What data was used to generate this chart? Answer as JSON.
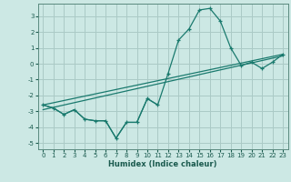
{
  "xlabel": "Humidex (Indice chaleur)",
  "bg_color": "#cce8e4",
  "grid_color": "#aacac6",
  "line_color": "#1a7a6e",
  "xlim": [
    -0.5,
    23.5
  ],
  "ylim": [
    -5.4,
    3.8
  ],
  "xticks": [
    0,
    1,
    2,
    3,
    4,
    5,
    6,
    7,
    8,
    9,
    10,
    11,
    12,
    13,
    14,
    15,
    16,
    17,
    18,
    19,
    20,
    21,
    22,
    23
  ],
  "yticks": [
    -5,
    -4,
    -3,
    -2,
    -1,
    0,
    1,
    2,
    3
  ],
  "series_main_x": [
    0,
    1,
    2,
    3,
    4,
    5,
    6,
    7,
    8,
    9,
    10,
    11,
    12,
    13,
    14,
    15,
    16,
    17,
    18,
    19,
    20,
    21,
    22,
    23
  ],
  "series_main_y": [
    -2.6,
    -2.8,
    -3.2,
    -2.9,
    -3.5,
    -3.6,
    -3.6,
    -4.7,
    -3.7,
    -3.7,
    -2.2,
    -2.6,
    -0.6,
    1.5,
    2.2,
    3.4,
    3.5,
    2.7,
    1.0,
    -0.1,
    0.1,
    -0.3,
    0.1,
    0.6
  ],
  "series_partial_x": [
    0,
    1,
    2,
    3,
    4,
    5,
    6,
    7,
    8,
    9,
    10,
    11
  ],
  "series_partial_y": [
    -2.6,
    -2.8,
    -3.2,
    -2.9,
    -3.5,
    -3.6,
    -3.6,
    -4.7,
    -3.7,
    -3.7,
    -2.2,
    -2.6
  ],
  "trend1_x": [
    0,
    23
  ],
  "trend1_y": [
    -2.6,
    0.6
  ],
  "trend2_x": [
    0,
    23
  ],
  "trend2_y": [
    -2.9,
    0.5
  ]
}
